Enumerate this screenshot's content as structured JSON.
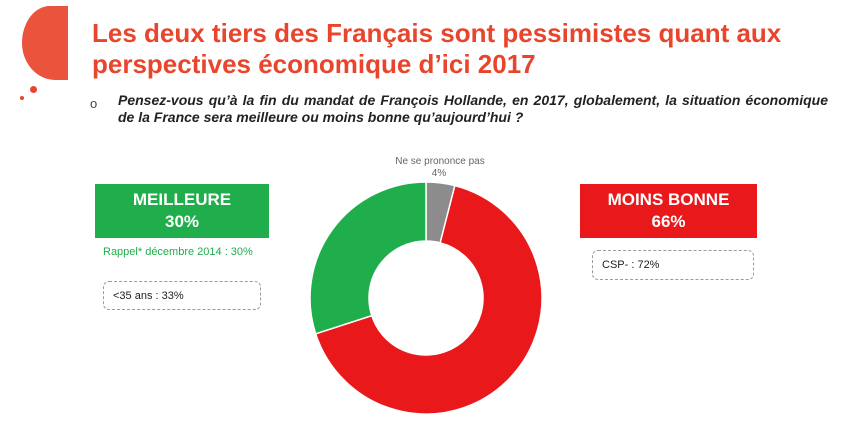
{
  "title": "Les deux tiers des Français sont pessimistes quant aux perspectives économique d’ici 2017",
  "bullet": "o",
  "question": "Pensez-vous qu’à la fin du mandat de François Hollande, en 2017, globalement, la situation économique de la France sera meilleure ou moins bonne qu’aujourd’hui ?",
  "left": {
    "label": "MEILLEURE",
    "value": "30%",
    "rappel": "Rappel* décembre 2014 : 30%",
    "subgroup": "<35 ans : 33%"
  },
  "right": {
    "label": "MOINS BONNE",
    "value": "66%",
    "subgroup": "CSP- : 72%"
  },
  "colors": {
    "accent": "#e8452c",
    "green": "#1fae4b",
    "red": "#e8181b",
    "grey": "#8c8c8c"
  },
  "chart_data": {
    "type": "pie",
    "donut": true,
    "labels": [
      "Ne se prononce pas",
      "Moins bonne",
      "Meilleure"
    ],
    "values": [
      4,
      66,
      30
    ],
    "colors": [
      "#8c8c8c",
      "#e8181b",
      "#1fae4b"
    ],
    "data_labels": [
      "4%",
      "",
      ""
    ]
  }
}
